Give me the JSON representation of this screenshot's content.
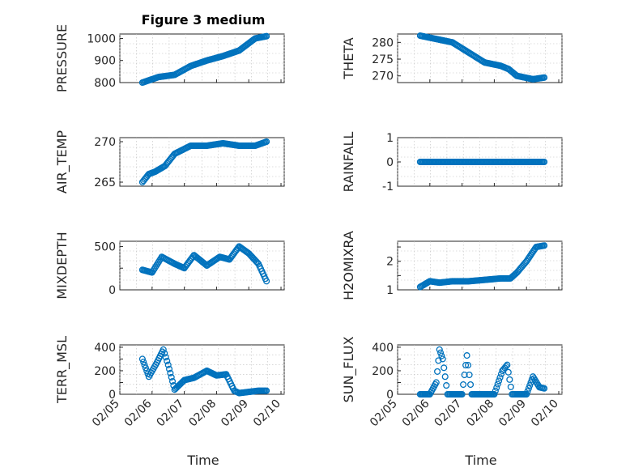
{
  "figure_title": "Figure 3 medium",
  "chart_data": [
    {
      "type": "scatter",
      "ylabel": "PRESSURE",
      "ylim": [
        800,
        1020
      ],
      "yticks": [
        800,
        900,
        1000
      ],
      "ytick_labels": [
        "800",
        "900",
        "1000"
      ],
      "x": [
        0,
        0.5,
        1,
        1.5,
        2,
        2.5,
        3,
        3.5,
        3.85
      ],
      "y": [
        800,
        825,
        835,
        875,
        900,
        920,
        945,
        1000,
        1010
      ]
    },
    {
      "type": "scatter",
      "ylabel": "THETA",
      "ylim": [
        268,
        282.5
      ],
      "yticks": [
        270,
        275,
        280
      ],
      "ytick_labels": [
        "270",
        "275",
        "280"
      ],
      "x": [
        0,
        0.5,
        1,
        1.5,
        2,
        2.5,
        2.75,
        3,
        3.5,
        3.85
      ],
      "y": [
        282,
        281,
        280,
        277,
        274,
        273,
        272,
        270,
        269,
        269.5
      ]
    },
    {
      "type": "scatter",
      "ylabel": "AIR_TEMP",
      "ylim": [
        264.5,
        270.5
      ],
      "yticks": [
        265,
        270
      ],
      "ytick_labels": [
        "265",
        "270"
      ],
      "x": [
        0,
        0.2,
        0.4,
        0.7,
        1,
        1.5,
        2,
        2.5,
        3,
        3.5,
        3.85
      ],
      "y": [
        265,
        266,
        266.3,
        267,
        268.5,
        269.5,
        269.5,
        269.8,
        269.5,
        269.5,
        270
      ]
    },
    {
      "type": "scatter",
      "ylabel": "RAINFALL",
      "ylim": [
        -1,
        1
      ],
      "yticks": [
        -1,
        0,
        1
      ],
      "ytick_labels": [
        "-1",
        "0",
        "1"
      ],
      "x": [
        0,
        1,
        2,
        3,
        3.85
      ],
      "y": [
        0,
        0,
        0,
        0,
        0
      ]
    },
    {
      "type": "scatter",
      "ylabel": "MIXDEPTH",
      "ylim": [
        0,
        560
      ],
      "yticks": [
        0,
        250,
        500
      ],
      "ytick_labels": [
        "0",
        "",
        "500"
      ],
      "x": [
        0,
        0.3,
        0.6,
        1,
        1.3,
        1.6,
        2,
        2.4,
        2.7,
        3,
        3.3,
        3.6,
        3.85
      ],
      "y": [
        230,
        200,
        380,
        300,
        250,
        400,
        280,
        380,
        350,
        500,
        420,
        300,
        100
      ]
    },
    {
      "type": "scatter",
      "ylabel": "H2OMIXRA",
      "ylim": [
        1,
        2.7
      ],
      "yticks": [
        1,
        1.5,
        2,
        2.5
      ],
      "ytick_labels": [
        "1",
        "",
        "2",
        ""
      ],
      "x": [
        0,
        0.3,
        0.6,
        1,
        1.5,
        2,
        2.5,
        2.8,
        3,
        3.3,
        3.6,
        3.85
      ],
      "y": [
        1.1,
        1.3,
        1.25,
        1.3,
        1.3,
        1.35,
        1.4,
        1.4,
        1.6,
        2.0,
        2.5,
        2.55
      ]
    },
    {
      "type": "scatter",
      "ylabel": "TERR_MSL",
      "ylim": [
        0,
        420
      ],
      "yticks": [
        0,
        100,
        200,
        300,
        400
      ],
      "ytick_labels": [
        "0",
        "",
        "200",
        "",
        "400"
      ],
      "x": [
        0,
        0.2,
        0.45,
        0.65,
        0.8,
        1,
        1.3,
        1.6,
        2,
        2.3,
        2.6,
        2.85,
        3,
        3.3,
        3.6,
        3.85
      ],
      "y": [
        300,
        150,
        270,
        380,
        250,
        40,
        120,
        140,
        200,
        160,
        170,
        30,
        10,
        20,
        30,
        30
      ]
    },
    {
      "type": "scatter",
      "ylabel": "SUN_FLUX",
      "ylim": [
        0,
        420
      ],
      "yticks": [
        0,
        100,
        200,
        300,
        400
      ],
      "ytick_labels": [
        "0",
        "",
        "200",
        "",
        "400"
      ],
      "x": [
        0,
        0.3,
        0.5,
        0.6,
        0.7,
        0.85,
        1,
        1.3,
        1.45,
        1.6,
        1.8,
        2,
        2.3,
        2.55,
        2.7,
        2.85,
        3,
        3.3,
        3.5,
        3.7,
        3.85
      ],
      "y": [
        0,
        0,
        100,
        380,
        300,
        0,
        0,
        0,
        330,
        0,
        0,
        0,
        0,
        200,
        250,
        0,
        0,
        0,
        150,
        60,
        50
      ]
    }
  ],
  "x_axis": {
    "label": "Time",
    "xlim": [
      -0.7,
      4.4
    ],
    "ticks": [
      -0.7,
      0.3,
      1.3,
      2.3,
      3.3,
      4.3
    ],
    "tick_labels": [
      "02/05",
      "02/06",
      "02/07",
      "02/08",
      "02/09",
      "02/10"
    ]
  },
  "colors": {
    "marker": "#0072BD",
    "axes": "#262626"
  }
}
